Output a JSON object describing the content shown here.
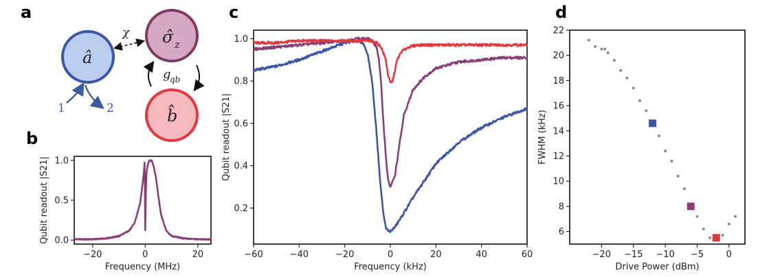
{
  "panels": {
    "a": "a",
    "b": "b",
    "c": "c",
    "d": "d"
  },
  "diagram": {
    "node_a": "â",
    "node_sigma": "σ̂",
    "node_sigma_sub": "z",
    "node_b": "b̂",
    "coupling_chi": "χ",
    "coupling_g": "g",
    "coupling_g_sub": "qb",
    "port_in": "1",
    "port_out": "2",
    "colors": {
      "a_fill": "#b9cdee",
      "a_stroke": "#3d55a8",
      "sigma_fill": "#d7a8c4",
      "sigma_stroke": "#7e3a63",
      "b_fill": "#f5b9bd",
      "b_stroke": "#e0383e",
      "port_color": "#3d5a9a"
    }
  },
  "chart_data": [
    {
      "id": "b",
      "type": "line",
      "xlabel": "Frequency (MHz)",
      "ylabel": "Qubit readout |S21|",
      "xlim": [
        -27,
        25
      ],
      "ylim": [
        -0.05,
        1.05
      ],
      "xticks": [
        -20,
        0,
        20
      ],
      "xtick_labels": [
        "−20",
        "0",
        "20"
      ],
      "yticks": [
        0.0,
        0.5,
        1.0
      ],
      "ytick_labels": [
        "0.0",
        "0.5",
        "1.0"
      ],
      "series": [
        {
          "name": "trace",
          "color": "#8a3d75",
          "x": [
            -27,
            -20,
            -15,
            -10,
            -6,
            -4,
            -2,
            -1,
            -0.5,
            -0.2,
            0,
            0.2,
            0.5,
            1.0,
            1.5,
            2.0,
            2.5,
            3.0,
            4,
            5,
            6,
            8,
            10,
            15,
            20,
            25
          ],
          "y": [
            0.01,
            0.01,
            0.02,
            0.05,
            0.12,
            0.22,
            0.45,
            0.7,
            0.85,
            1.0,
            0.08,
            0.55,
            0.85,
            0.95,
            0.99,
            1.0,
            0.99,
            0.95,
            0.8,
            0.55,
            0.32,
            0.12,
            0.05,
            0.02,
            0.01,
            0.01
          ]
        }
      ]
    },
    {
      "id": "c",
      "type": "line",
      "xlabel": "Frequency (kHz)",
      "ylabel": "Qubit readout |S21|",
      "xlim": [
        -60,
        60
      ],
      "ylim": [
        0.03,
        1.04
      ],
      "xticks": [
        -60,
        -40,
        -20,
        0,
        20,
        40,
        60
      ],
      "xtick_labels": [
        "−60",
        "−40",
        "−20",
        "0",
        "20",
        "40",
        "60"
      ],
      "yticks": [
        0.2,
        0.4,
        0.6,
        0.8,
        1.0
      ],
      "ytick_labels": [
        "0.2",
        "0.4",
        "0.6",
        "0.8",
        "1.0"
      ],
      "series": [
        {
          "name": "blue",
          "color": "#3d55a8",
          "x": [
            -60,
            -50,
            -40,
            -30,
            -20,
            -15,
            -12,
            -10,
            -8,
            -6,
            -5,
            -4,
            -3,
            -2,
            -1,
            0,
            2,
            5,
            10,
            15,
            20,
            30,
            40,
            50,
            60
          ],
          "y": [
            0.85,
            0.87,
            0.9,
            0.94,
            0.98,
            0.99,
            0.98,
            0.93,
            0.8,
            0.55,
            0.4,
            0.27,
            0.17,
            0.11,
            0.09,
            0.09,
            0.11,
            0.16,
            0.25,
            0.33,
            0.41,
            0.51,
            0.58,
            0.63,
            0.67
          ]
        },
        {
          "name": "purple",
          "color": "#8a3d75",
          "x": [
            -60,
            -50,
            -40,
            -30,
            -20,
            -15,
            -10,
            -8,
            -6,
            -5,
            -4,
            -3,
            -2,
            -1,
            0,
            2,
            4,
            6,
            10,
            15,
            20,
            30,
            40,
            50,
            60
          ],
          "y": [
            0.95,
            0.96,
            0.97,
            0.98,
            0.99,
            1.0,
            1.0,
            0.99,
            0.96,
            0.9,
            0.78,
            0.6,
            0.45,
            0.33,
            0.3,
            0.35,
            0.5,
            0.64,
            0.76,
            0.82,
            0.86,
            0.89,
            0.9,
            0.91,
            0.91
          ]
        },
        {
          "name": "red",
          "color": "#e0383e",
          "x": [
            -60,
            -50,
            -40,
            -30,
            -20,
            -10,
            -6,
            -4,
            -2,
            -1,
            0,
            1,
            2,
            3,
            5,
            8,
            12,
            20,
            30,
            40,
            50,
            60
          ],
          "y": [
            0.98,
            0.98,
            0.99,
            0.99,
            0.99,
            0.99,
            0.98,
            0.96,
            0.9,
            0.83,
            0.79,
            0.8,
            0.85,
            0.9,
            0.94,
            0.96,
            0.97,
            0.97,
            0.97,
            0.97,
            0.97,
            0.97
          ]
        }
      ]
    },
    {
      "id": "d",
      "type": "scatter",
      "xlabel": "Drive Power (dBm)",
      "ylabel": "FWHM (kHz)",
      "xlim": [
        -25,
        2.5
      ],
      "ylim": [
        5,
        22
      ],
      "xticks": [
        -20,
        -15,
        -10,
        -5,
        0
      ],
      "xtick_labels": [
        "−20",
        "−15",
        "−10",
        "−5",
        "0"
      ],
      "yticks": [
        6,
        8,
        10,
        12,
        14,
        16,
        18,
        20,
        22
      ],
      "ytick_labels": [
        "6",
        "8",
        "10",
        "12",
        "14",
        "16",
        "18",
        "20",
        "22"
      ],
      "dots": {
        "color": "#888888",
        "x": [
          -22,
          -21,
          -20,
          -19.5,
          -19,
          -18,
          -17,
          -16,
          -15,
          -14,
          -13,
          -11,
          -10,
          -9,
          -8,
          -7,
          -5,
          -4,
          -3,
          -1,
          0,
          1
        ],
        "y": [
          21.2,
          20.7,
          20.5,
          20.5,
          20.2,
          19.6,
          18.8,
          18.2,
          17.4,
          16.4,
          15.6,
          13.6,
          12.4,
          11.6,
          10.4,
          9.4,
          7.2,
          6.2,
          5.5,
          5.7,
          6.6,
          7.2
        ]
      },
      "highlights": [
        {
          "x": -12,
          "y": 14.6,
          "color": "#3d55a8"
        },
        {
          "x": -6,
          "y": 8.0,
          "color": "#8a3d75"
        },
        {
          "x": -2,
          "y": 5.5,
          "color": "#e0383e"
        }
      ]
    }
  ]
}
